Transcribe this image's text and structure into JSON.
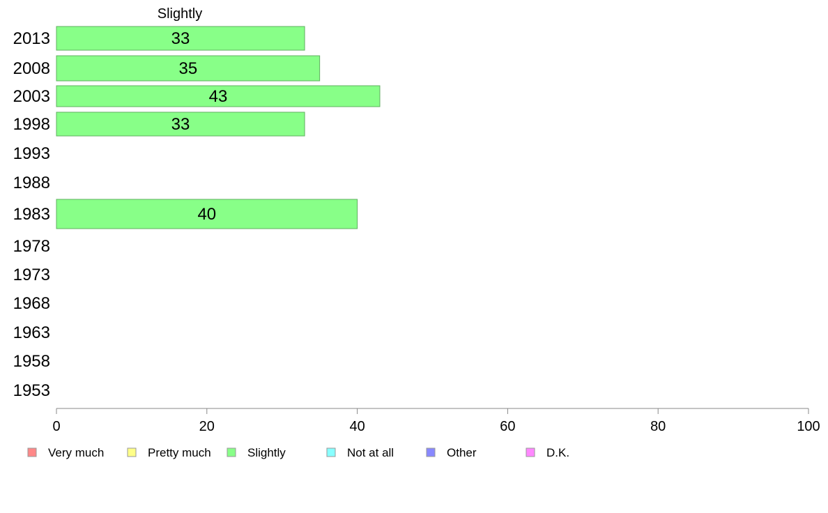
{
  "chart_data": {
    "type": "bar",
    "orientation": "horizontal",
    "title": "Slightly",
    "categories": [
      "2013",
      "2008",
      "2003",
      "1998",
      "1993",
      "1988",
      "1983",
      "1978",
      "1973",
      "1968",
      "1963",
      "1958",
      "1953"
    ],
    "series": [
      {
        "name": "Slightly",
        "color": "#88ff88",
        "values": [
          33,
          35,
          43,
          33,
          null,
          null,
          40,
          null,
          null,
          null,
          null,
          null,
          null
        ]
      }
    ],
    "xlim": [
      0,
      100
    ],
    "xticks": [
      "0",
      "20",
      "40",
      "60",
      "80",
      "100"
    ],
    "grid": false,
    "legend": {
      "placement": "bottom",
      "entries": [
        {
          "label": "Very much",
          "color": "#ff8888"
        },
        {
          "label": "Pretty much",
          "color": "#ffff88"
        },
        {
          "label": "Slightly",
          "color": "#88ff88"
        },
        {
          "label": "Not at all",
          "color": "#88ffff"
        },
        {
          "label": "Other",
          "color": "#8888ff"
        },
        {
          "label": "D.K.",
          "color": "#ff88ff"
        }
      ]
    }
  }
}
